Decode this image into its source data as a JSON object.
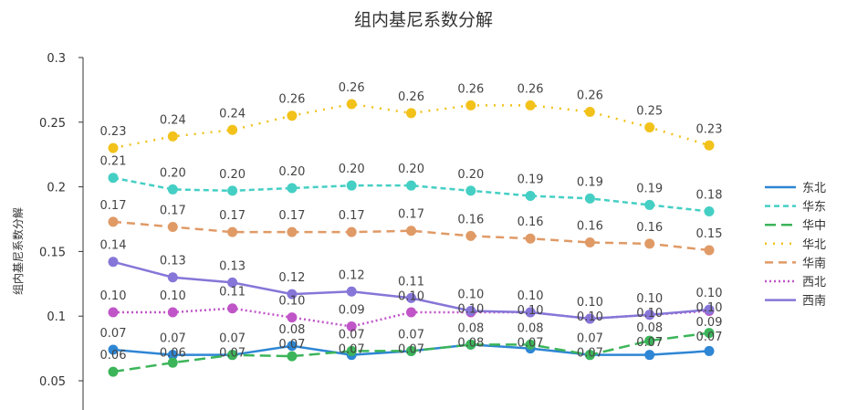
{
  "chart_data": {
    "type": "line",
    "title": "组内基尼系数分解",
    "xlabel": "",
    "ylabel": "组内基尼系数分解",
    "ylim": [
      0.05,
      0.3
    ],
    "yticks": [
      "0.05",
      "0.1",
      "0.15",
      "0.2",
      "0.25",
      "0.3"
    ],
    "grid": false,
    "legend": "right",
    "series": [
      {
        "name": "东北",
        "color": "#2e86d4",
        "dash": "",
        "values": [
          0.074,
          0.07,
          0.07,
          0.077,
          0.07,
          0.073,
          0.078,
          0.075,
          0.07,
          0.07,
          0.073
        ]
      },
      {
        "name": "华东",
        "color": "#45cfc4",
        "dash": "6,4",
        "values": [
          0.207,
          0.198,
          0.197,
          0.199,
          0.201,
          0.201,
          0.197,
          0.193,
          0.191,
          0.186,
          0.181
        ]
      },
      {
        "name": "华中",
        "color": "#3cb55a",
        "dash": "12,6",
        "values": [
          0.057,
          0.064,
          0.07,
          0.069,
          0.073,
          0.073,
          0.078,
          0.078,
          0.07,
          0.081,
          0.087
        ]
      },
      {
        "name": "华北",
        "color": "#f2c21b",
        "dash": "2,7",
        "values": [
          0.23,
          0.239,
          0.244,
          0.255,
          0.264,
          0.257,
          0.263,
          0.263,
          0.258,
          0.246,
          0.232
        ]
      },
      {
        "name": "华南",
        "color": "#e09a66",
        "dash": "9,6",
        "values": [
          0.173,
          0.169,
          0.165,
          0.165,
          0.165,
          0.166,
          0.162,
          0.16,
          0.157,
          0.156,
          0.151
        ]
      },
      {
        "name": "西北",
        "color": "#c055c8",
        "dash": "2,3",
        "values": [
          0.103,
          0.103,
          0.106,
          0.099,
          0.092,
          0.103,
          0.103,
          0.103,
          0.098,
          0.101,
          0.104
        ]
      },
      {
        "name": "西南",
        "color": "#8676d8",
        "dash": "",
        "values": [
          0.142,
          0.13,
          0.126,
          0.117,
          0.119,
          0.114,
          0.104,
          0.103,
          0.098,
          0.101,
          0.105
        ]
      }
    ]
  }
}
